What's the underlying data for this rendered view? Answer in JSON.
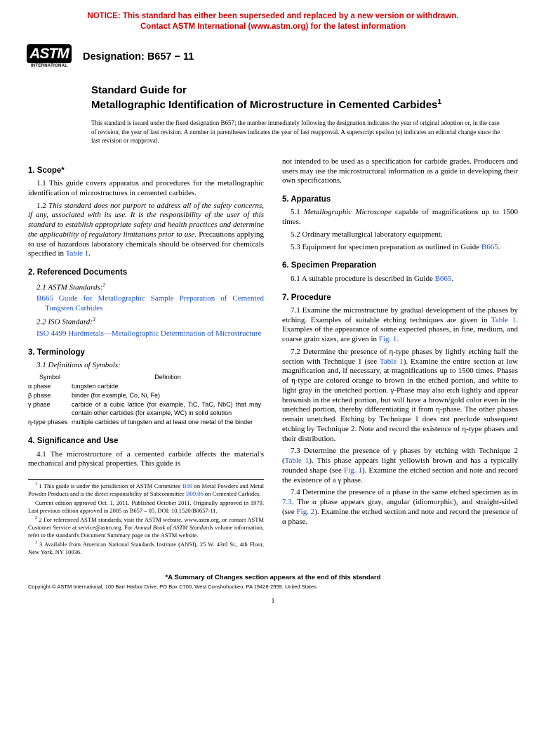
{
  "notice": {
    "line1": "NOTICE: This standard has either been superseded and replaced by a new version or withdrawn.",
    "line2": "Contact ASTM International (www.astm.org) for the latest information"
  },
  "logo": {
    "mark": "ASTM",
    "sub": "INTERNATIONAL"
  },
  "designation": "Designation: B657 − 11",
  "title": {
    "kicker": "Standard Guide for",
    "main": "Metallographic Identification of Microstructure in Cemented Carbides",
    "sup": "1"
  },
  "issue_note": "This standard is issued under the fixed designation B657; the number immediately following the designation indicates the year of original adoption or, in the case of revision, the year of last revision. A number in parentheses indicates the year of last reapproval. A superscript epsilon (ε) indicates an editorial change since the last revision or reapproval.",
  "sections": {
    "s1_head": "1. Scope*",
    "s1_1": "1.1 This guide covers apparatus and procedures for the metallographic identification of microstructures in cemented carbides.",
    "s1_2a": "1.2 ",
    "s1_2b": "This standard does not purport to address all of the safety concerns, if any, associated with its use. It is the responsibility of the user of this standard to establish appropriate safety and health practices and determine the applicability of regulatory limitations prior to use.",
    "s1_2c": " Precautions applying to use of hazardous laboratory chemicals should be observed for chemicals specified in ",
    "s1_2d": "Table 1",
    "s1_2e": ".",
    "s2_head": "2. Referenced Documents",
    "s2_1": "2.1 ASTM Standards:",
    "s2_1_sup": "2",
    "s2_1_ref": "B665 Guide for Metallographic Sample Preparation of Cemented Tungsten Carbides",
    "s2_2": "2.2 ISO Standard:",
    "s2_2_sup": "3",
    "s2_2_ref": "ISO 4499 Hardmetals—Metallographic Determination of Microstructure",
    "s3_head": "3. Terminology",
    "s3_1": "3.1 Definitions of Symbols:",
    "symbols": {
      "head_symbol": "Symbol",
      "head_def": "Definition",
      "rows": [
        {
          "sym": "α phase",
          "def": "tungsten carbide"
        },
        {
          "sym": "β phase",
          "def": "binder (for example, Co, Ni, Fe)"
        },
        {
          "sym": "γ phase",
          "def": "carbide of a cubic lattice (for example, TiC, TaC, NbC) that may contain other carbides (for example, WC) in solid solution"
        },
        {
          "sym": "η-type phases",
          "def": "multiple carbides of tungsten and at least one metal of the binder"
        }
      ]
    },
    "s4_head": "4. Significance and Use",
    "s4_1": "4.1 The microstructure of a cemented carbide affects the material's mechanical and physical properties. This guide is",
    "s4_cont": "not intended to be used as a specification for carbide grades. Producers and users may use the microstructural information as a guide in developing their own specifications.",
    "s5_head": "5. Apparatus",
    "s5_1a": "5.1 ",
    "s5_1b": "Metallographic Microscope",
    "s5_1c": " capable of magnifications up to 1500 times.",
    "s5_2": "5.2 Ordinary metallurgical laboratory equipment.",
    "s5_3a": "5.3 Equipment for specimen preparation as outlined in Guide ",
    "s5_3b": "B665",
    "s5_3c": ".",
    "s6_head": "6. Specimen Preparation",
    "s6_1a": "6.1 A suitable procedure is described in Guide ",
    "s6_1b": "B665",
    "s6_1c": ".",
    "s7_head": "7. Procedure",
    "s7_1a": "7.1 Examine the microstructure by gradual development of the phases by etching. Examples of suitable etching techniques are given in ",
    "s7_1b": "Table 1",
    "s7_1c": ". Examples of the appearance of some expected phases, in fine, medium, and coarse grain sizes, are given in ",
    "s7_1d": "Fig. 1",
    "s7_1e": ".",
    "s7_2a": "7.2 Determine the presence of η-type phases by lightly etching half the section with Technique 1 (see ",
    "s7_2b": "Table 1",
    "s7_2c": "). Examine the entire section at low magnification and, if necessary, at magnifications up to 1500 times. Phases of η-type are colored orange to brown in the etched portion, and white to light gray in the unetched portion. γ-Phase may also etch lightly and appear brownish in the etched portion, but will have a brown/gold color even in the unetched portion, thereby differentiating it from η-phase. The other phases remain unetched. Etching by Technique 1 does not preclude subsequent etching by Technique 2. Note and record the existence of η-type phases and their distribution.",
    "s7_3a": "7.3 Determine the presence of γ phases by etching with Technique 2 (",
    "s7_3b": "Table 1",
    "s7_3c": "). This phase appears light yellowish brown and has a typically rounded shape (see ",
    "s7_3d": "Fig. 1",
    "s7_3e": "). Examine the etched section and note and record the existence of a γ phase.",
    "s7_4a": "7.4 Determine the presence of α phase in the same etched specimen as in ",
    "s7_4b": "7.3",
    "s7_4c": ". The α phase appears gray, angular (idiomorphic), and straight-sided (see ",
    "s7_4d": "Fig. 2",
    "s7_4e": "). Examine the etched section and note and record the presence of α phase."
  },
  "footnotes": {
    "f1a": "1 This guide is under the jurisdiction of ASTM Committee ",
    "f1b": "B09",
    "f1c": " on Metal Powders and Metal Powder Products and is the direct responsibility of Subcommittee ",
    "f1d": "B09.06",
    "f1e": " on Cemented Carbides.",
    "f1_2": "Current edition approved Oct. 1, 2011. Published October 2011. Originally approved in 1979. Last previous edition approved in 2005 as B657 – 05. DOI: 10.1520/B0657-11.",
    "f2a": "2 For referenced ASTM standards, visit the ASTM website, www.astm.org, or contact ASTM Customer Service at service@astm.org. For ",
    "f2b": "Annual Book of ASTM Standards",
    "f2c": " volume information, refer to the standard's Document Summary page on the ASTM website.",
    "f3": "3 Available from American National Standards Institute (ANSI), 25 W. 43rd St., 4th Floor, New York, NY 10036."
  },
  "footer_star": "*A Summary of Changes section appears at the end of this standard",
  "copyright": "Copyright © ASTM International, 100 Barr Harbor Drive, PO Box C700, West Conshohocken, PA 19428-2959. United States",
  "page_number": "1"
}
